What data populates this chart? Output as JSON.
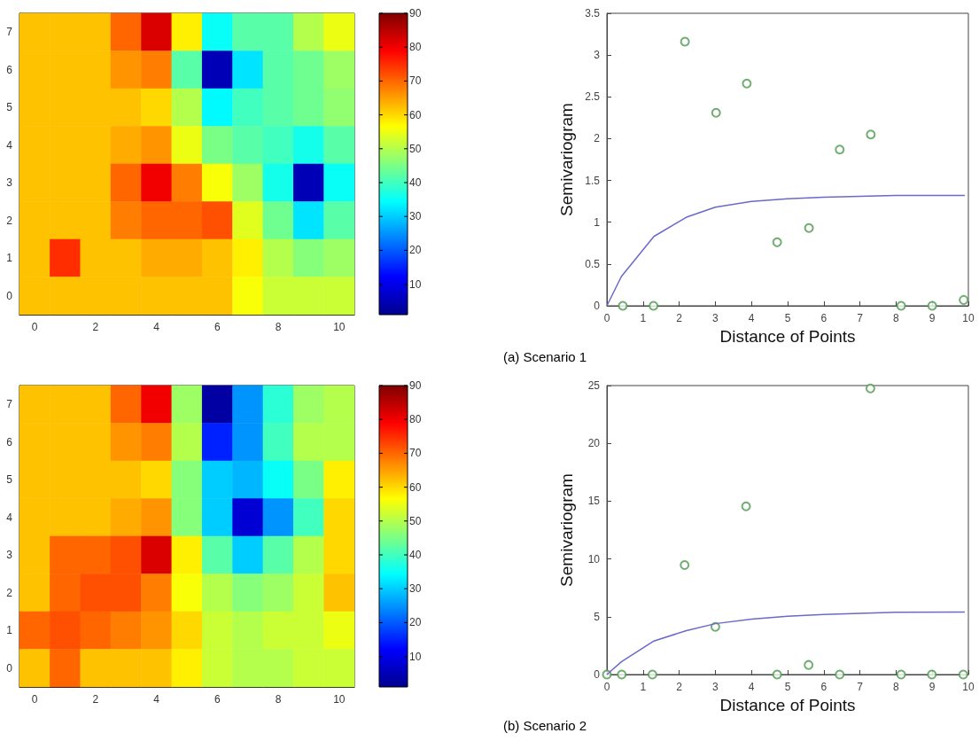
{
  "chart_data": [
    {
      "type": "heatmap",
      "categories": [
        "0",
        null,
        "2",
        null,
        "4",
        null,
        "6",
        null,
        "8",
        null,
        "10"
      ],
      "y_categories": [
        "7",
        "6",
        "5",
        "4",
        "3",
        "2",
        "1",
        "0"
      ],
      "cells": [
        [
          62,
          62,
          62,
          70,
          82,
          58,
          35,
          42,
          42,
          50,
          55
        ],
        [
          62,
          62,
          62,
          66,
          68,
          42,
          5,
          32,
          42,
          44,
          48
        ],
        [
          62,
          62,
          62,
          62,
          60,
          50,
          34,
          40,
          42,
          44,
          47
        ],
        [
          62,
          62,
          62,
          64,
          66,
          55,
          45,
          42,
          40,
          36,
          42
        ],
        [
          62,
          62,
          62,
          70,
          80,
          68,
          56,
          48,
          36,
          5,
          35
        ],
        [
          62,
          62,
          62,
          68,
          70,
          70,
          72,
          54,
          44,
          32,
          42
        ],
        [
          62,
          75,
          62,
          62,
          64,
          64,
          62,
          58,
          50,
          46,
          48
        ],
        [
          62,
          62,
          62,
          62,
          62,
          62,
          62,
          56,
          52,
          52,
          52
        ]
      ],
      "clim": [
        1,
        90
      ],
      "cticks": [
        10,
        20,
        30,
        40,
        50,
        60,
        70,
        80,
        90
      ]
    },
    {
      "type": "scatter",
      "xlabel": "Distance of Points",
      "ylabel": "Semivariogram",
      "annotations": [
        "(a) Scenario 1"
      ],
      "xlim": [
        0,
        10
      ],
      "xticks": [
        0,
        1,
        2,
        3,
        4,
        5,
        6,
        7,
        8,
        9,
        10
      ],
      "ylim": [
        0,
        3.5
      ],
      "yticks": [
        0,
        0.5,
        1,
        1.5,
        2,
        2.5,
        3,
        3.5
      ],
      "series": [
        {
          "type": "scatter",
          "marker": "circle",
          "color": "#4e9a4e",
          "x": [
            0.44,
            1.29,
            2.16,
            3.02,
            3.87,
            4.71,
            5.59,
            6.44,
            7.3,
            8.14,
            9.0,
            9.87
          ],
          "values": [
            0,
            0,
            3.16,
            2.31,
            2.66,
            0.76,
            0.93,
            1.87,
            2.05,
            0,
            0,
            0.07
          ]
        },
        {
          "type": "line",
          "marker": "none",
          "color": "#6a6ac8",
          "x": [
            0,
            0.4,
            1.3,
            2.2,
            3,
            4,
            5,
            6,
            7,
            8,
            9.9
          ],
          "values": [
            0,
            0.35,
            0.83,
            1.06,
            1.18,
            1.25,
            1.28,
            1.3,
            1.31,
            1.32,
            1.32
          ]
        }
      ]
    },
    {
      "type": "heatmap",
      "categories": [
        "0",
        null,
        "2",
        null,
        "4",
        null,
        "6",
        null,
        "8",
        null,
        "10"
      ],
      "y_categories": [
        "7",
        "6",
        "5",
        "4",
        "3",
        "2",
        "1",
        "0"
      ],
      "cells": [
        [
          62,
          62,
          62,
          70,
          80,
          48,
          3,
          25,
          38,
          48,
          50
        ],
        [
          62,
          62,
          62,
          66,
          68,
          50,
          15,
          25,
          40,
          50,
          50
        ],
        [
          62,
          62,
          62,
          62,
          60,
          46,
          30,
          28,
          35,
          45,
          58
        ],
        [
          62,
          62,
          62,
          64,
          66,
          46,
          30,
          8,
          25,
          40,
          60
        ],
        [
          62,
          70,
          70,
          72,
          82,
          58,
          42,
          30,
          42,
          50,
          60
        ],
        [
          62,
          70,
          72,
          72,
          68,
          56,
          50,
          46,
          48,
          52,
          62
        ],
        [
          70,
          72,
          70,
          68,
          66,
          60,
          52,
          50,
          52,
          52,
          55
        ],
        [
          62,
          70,
          62,
          62,
          62,
          58,
          52,
          50,
          50,
          52,
          52
        ]
      ],
      "clim": [
        1,
        90
      ],
      "cticks": [
        10,
        20,
        30,
        40,
        50,
        60,
        70,
        80,
        90
      ]
    },
    {
      "type": "scatter",
      "xlabel": "Distance of Points",
      "ylabel": "Semivariogram",
      "annotations": [
        "(b) Scenario 2"
      ],
      "xlim": [
        0,
        10
      ],
      "xticks": [
        0,
        1,
        2,
        3,
        4,
        5,
        6,
        7,
        8,
        9,
        10
      ],
      "ylim": [
        0,
        25
      ],
      "yticks": [
        0,
        5,
        10,
        15,
        20,
        25
      ],
      "series": [
        {
          "type": "scatter",
          "marker": "circle",
          "color": "#4e9a4e",
          "x": [
            0,
            0.41,
            1.26,
            2.15,
            3.0,
            3.85,
            4.71,
            5.58,
            6.44,
            7.29,
            8.14,
            8.99,
            9.86
          ],
          "values": [
            0,
            0,
            0,
            9.47,
            4.12,
            14.55,
            0,
            0.83,
            0,
            24.75,
            0,
            0,
            0
          ]
        },
        {
          "type": "line",
          "marker": "none",
          "color": "#6a6ac8",
          "x": [
            0,
            0.4,
            1.3,
            2.2,
            3,
            4,
            5,
            6,
            7,
            8,
            9.9
          ],
          "values": [
            0,
            1.1,
            2.9,
            3.8,
            4.4,
            4.8,
            5.05,
            5.2,
            5.3,
            5.38,
            5.4
          ]
        }
      ]
    }
  ]
}
